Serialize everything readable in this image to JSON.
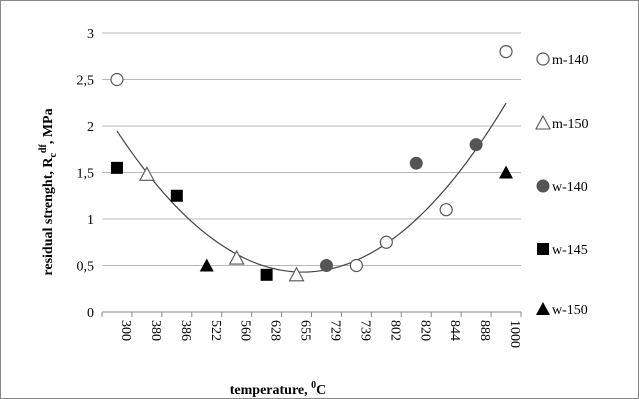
{
  "chart_data": {
    "type": "scatter",
    "categories": [
      "300",
      "380",
      "386",
      "522",
      "560",
      "628",
      "655",
      "729",
      "739",
      "802",
      "820",
      "844",
      "888",
      "1000"
    ],
    "xlabel": "temperature, ",
    "xlabel_sup": "0",
    "xlabel_end": "C",
    "ylabel": "residual strenght, R",
    "ylabel_sub": "c",
    "ylabel_sup": "df",
    "ylabel_end": ", MPa",
    "ylim": [
      0,
      3
    ],
    "yticks": [
      "0",
      "0,5",
      "1",
      "1,5",
      "2",
      "2,5",
      "3"
    ],
    "yticks_values": [
      0,
      0.5,
      1,
      1.5,
      2,
      2.5,
      3
    ],
    "grid": true,
    "legend_position": "right",
    "series": [
      {
        "name": "m-140",
        "marker": "circle-open",
        "color": "#555555",
        "points": [
          {
            "x": "300",
            "y": 2.5
          },
          {
            "x": "739",
            "y": 0.5
          },
          {
            "x": "802",
            "y": 0.75
          },
          {
            "x": "844",
            "y": 1.1
          },
          {
            "x": "1000",
            "y": 2.8
          }
        ]
      },
      {
        "name": "m-150",
        "marker": "triangle-open",
        "color": "#555555",
        "points": [
          {
            "x": "380",
            "y": 1.48
          },
          {
            "x": "560",
            "y": 0.58
          },
          {
            "x": "655",
            "y": 0.4
          }
        ]
      },
      {
        "name": "w-140",
        "marker": "circle-filled",
        "color": "#555555",
        "points": [
          {
            "x": "729",
            "y": 0.5
          },
          {
            "x": "820",
            "y": 1.6
          },
          {
            "x": "888",
            "y": 1.8
          }
        ]
      },
      {
        "name": "w-145",
        "marker": "square-filled",
        "color": "#000000",
        "points": [
          {
            "x": "300",
            "y": 1.55
          },
          {
            "x": "386",
            "y": 1.25
          },
          {
            "x": "628",
            "y": 0.4
          }
        ]
      },
      {
        "name": "w-150",
        "marker": "triangle-filled",
        "color": "#000000",
        "points": [
          {
            "x": "522",
            "y": 0.5
          },
          {
            "x": "1000",
            "y": 1.5
          }
        ]
      }
    ],
    "trendline": {
      "type": "polynomial",
      "color": "#444444"
    }
  }
}
